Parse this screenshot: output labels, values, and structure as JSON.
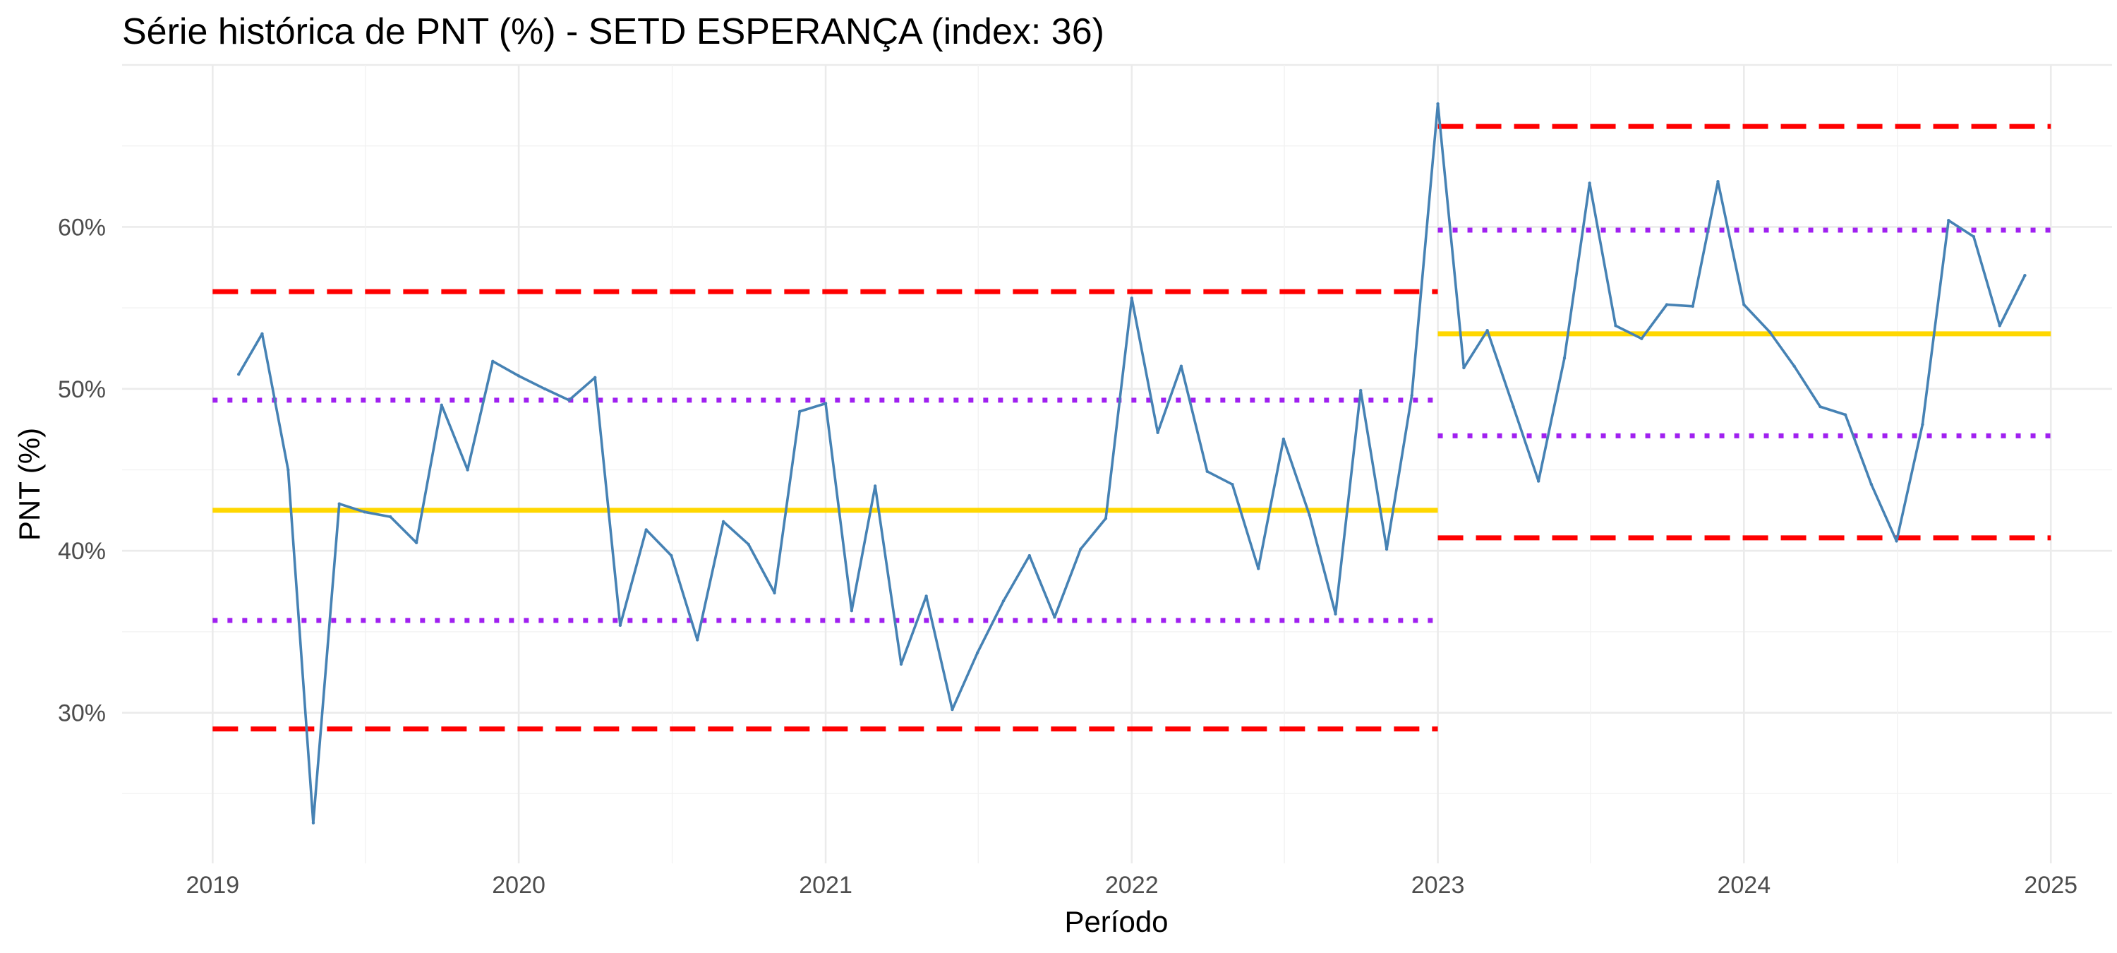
{
  "chart_data": {
    "type": "line",
    "title": "Série histórica de PNT (%) - SETD ESPERANÇA (index: 36)",
    "xlabel": "Período",
    "ylabel": "PNT (%)",
    "x_ticks": [
      "2019",
      "2020",
      "2021",
      "2022",
      "2023",
      "2024",
      "2025"
    ],
    "y_ticks": [
      "30%",
      "40%",
      "50%",
      "60%"
    ],
    "y_tick_values": [
      30,
      40,
      50,
      60
    ],
    "xlim": [
      "2018-09-15",
      "2025-03-15"
    ],
    "ylim": [
      20.7,
      70.0
    ],
    "grid": true,
    "colors": {
      "series": "#4682B4",
      "mean": "#FFD700",
      "sigma2": "#A020F0",
      "sigma3": "#FF0000"
    },
    "series": [
      {
        "x": [
          "2019-02-01",
          "2019-03-01",
          "2019-04-01",
          "2019-05-01",
          "2019-06-01",
          "2019-07-01",
          "2019-08-01",
          "2019-09-01",
          "2019-10-01",
          "2019-11-01",
          "2019-12-01",
          "2020-01-01",
          "2020-02-01",
          "2020-03-01",
          "2020-04-01",
          "2020-05-01",
          "2020-06-01",
          "2020-07-01",
          "2020-08-01",
          "2020-09-01",
          "2020-10-01",
          "2020-11-01",
          "2020-12-01",
          "2021-01-01",
          "2021-02-01",
          "2021-03-01",
          "2021-04-01",
          "2021-05-01",
          "2021-06-01",
          "2021-07-01",
          "2021-08-01",
          "2021-09-01",
          "2021-10-01",
          "2021-11-01",
          "2021-12-01",
          "2022-01-01",
          "2022-02-01",
          "2022-03-01",
          "2022-04-01",
          "2022-05-01",
          "2022-06-01",
          "2022-07-01",
          "2022-08-01",
          "2022-09-01",
          "2022-10-01",
          "2022-11-01",
          "2022-12-01",
          "2023-01-01",
          "2023-02-01",
          "2023-03-01",
          "2023-04-01",
          "2023-05-01",
          "2023-06-01",
          "2023-07-01",
          "2023-08-01",
          "2023-09-01",
          "2023-10-01",
          "2023-11-01",
          "2023-12-01",
          "2024-01-01",
          "2024-02-01",
          "2024-03-01",
          "2024-04-01",
          "2024-05-01",
          "2024-06-01",
          "2024-07-01",
          "2024-08-01",
          "2024-09-01",
          "2024-10-01",
          "2024-11-01",
          "2024-12-01"
        ],
        "y": [
          50.9,
          53.4,
          45.0,
          23.2,
          42.9,
          42.4,
          42.1,
          40.5,
          49.0,
          45.0,
          51.7,
          50.8,
          50.0,
          49.3,
          50.7,
          35.4,
          41.3,
          39.7,
          34.5,
          41.8,
          40.4,
          37.4,
          48.6,
          49.1,
          36.3,
          44.0,
          33.0,
          37.2,
          30.2,
          33.7,
          36.9,
          39.7,
          35.9,
          40.1,
          42.0,
          55.6,
          47.3,
          51.4,
          44.9,
          44.1,
          38.9,
          46.9,
          42.2,
          36.1,
          49.9,
          40.1,
          49.6,
          67.6,
          51.3,
          53.6,
          48.9,
          44.3,
          51.9,
          62.7,
          53.9,
          53.1,
          55.2,
          55.1,
          62.8,
          55.2,
          53.5,
          51.4,
          48.9,
          48.4,
          44.1,
          40.6,
          47.8,
          60.4,
          59.4,
          53.9,
          57.0
        ]
      }
    ],
    "control_lines": [
      {
        "kind": "mean",
        "x_start": "2019-01-01",
        "x_end": "2023-01-01",
        "y": 42.5
      },
      {
        "kind": "sigma2",
        "x_start": "2019-01-01",
        "x_end": "2023-01-01",
        "y": 49.3
      },
      {
        "kind": "sigma2",
        "x_start": "2019-01-01",
        "x_end": "2023-01-01",
        "y": 35.7
      },
      {
        "kind": "sigma3",
        "x_start": "2019-01-01",
        "x_end": "2023-01-01",
        "y": 56.0
      },
      {
        "kind": "sigma3",
        "x_start": "2019-01-01",
        "x_end": "2023-01-01",
        "y": 29.0
      },
      {
        "kind": "mean",
        "x_start": "2023-01-01",
        "x_end": "2025-01-01",
        "y": 53.4
      },
      {
        "kind": "sigma2",
        "x_start": "2023-01-01",
        "x_end": "2025-01-01",
        "y": 59.8
      },
      {
        "kind": "sigma2",
        "x_start": "2023-01-01",
        "x_end": "2025-01-01",
        "y": 47.1
      },
      {
        "kind": "sigma3",
        "x_start": "2023-01-01",
        "x_end": "2025-01-01",
        "y": 66.2
      },
      {
        "kind": "sigma3",
        "x_start": "2023-01-01",
        "x_end": "2025-01-01",
        "y": 40.8
      }
    ]
  }
}
